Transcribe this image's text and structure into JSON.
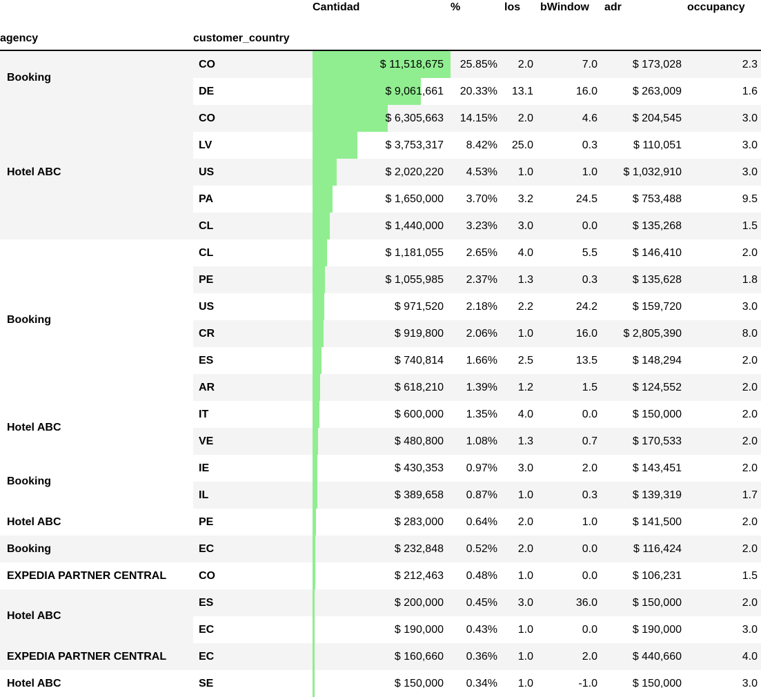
{
  "colors": {
    "bar": "#90ee90",
    "row_stripe": "#f4f4f4",
    "header_border": "#000000",
    "text": "#000000"
  },
  "chart_data": {
    "type": "table",
    "title": "",
    "bar_column": "Cantidad",
    "bar_scale_max": 11518675,
    "columns": [
      "agency",
      "customer_country",
      "Cantidad",
      "%",
      "los",
      "bWindow",
      "adr",
      "occupancy"
    ],
    "column_formats": [
      "text",
      "text",
      "money",
      "percent",
      "decimal1",
      "decimal1",
      "money",
      "decimal1"
    ],
    "rows": [
      [
        "Booking",
        "CO",
        11518675,
        25.85,
        2.0,
        7.0,
        173028,
        2.3
      ],
      [
        "Booking",
        "DE",
        9061661,
        20.33,
        13.1,
        16.0,
        263009,
        1.6
      ],
      [
        "Hotel ABC",
        "CO",
        6305663,
        14.15,
        2.0,
        4.6,
        204545,
        3.0
      ],
      [
        "Hotel ABC",
        "LV",
        3753317,
        8.42,
        25.0,
        0.3,
        110051,
        3.0
      ],
      [
        "Hotel ABC",
        "US",
        2020220,
        4.53,
        1.0,
        1.0,
        1032910,
        3.0
      ],
      [
        "Hotel ABC",
        "PA",
        1650000,
        3.7,
        3.2,
        24.5,
        753488,
        9.5
      ],
      [
        "Hotel ABC",
        "CL",
        1440000,
        3.23,
        3.0,
        0.0,
        135268,
        1.5
      ],
      [
        "Booking",
        "CL",
        1181055,
        2.65,
        4.0,
        5.5,
        146410,
        2.0
      ],
      [
        "Booking",
        "PE",
        1055985,
        2.37,
        1.3,
        0.3,
        135628,
        1.8
      ],
      [
        "Booking",
        "US",
        971520,
        2.18,
        2.2,
        24.2,
        159720,
        3.0
      ],
      [
        "Booking",
        "CR",
        919800,
        2.06,
        1.0,
        16.0,
        2805390,
        8.0
      ],
      [
        "Booking",
        "ES",
        740814,
        1.66,
        2.5,
        13.5,
        148294,
        2.0
      ],
      [
        "Booking",
        "AR",
        618210,
        1.39,
        1.2,
        1.5,
        124552,
        2.0
      ],
      [
        "Hotel ABC",
        "IT",
        600000,
        1.35,
        4.0,
        0.0,
        150000,
        2.0
      ],
      [
        "Hotel ABC",
        "VE",
        480800,
        1.08,
        1.3,
        0.7,
        170533,
        2.0
      ],
      [
        "Booking",
        "IE",
        430353,
        0.97,
        3.0,
        2.0,
        143451,
        2.0
      ],
      [
        "Booking",
        "IL",
        389658,
        0.87,
        1.0,
        0.3,
        139319,
        1.7
      ],
      [
        "Hotel ABC",
        "PE",
        283000,
        0.64,
        2.0,
        1.0,
        141500,
        2.0
      ],
      [
        "Booking",
        "EC",
        232848,
        0.52,
        2.0,
        0.0,
        116424,
        2.0
      ],
      [
        "EXPEDIA PARTNER CENTRAL",
        "CO",
        212463,
        0.48,
        1.0,
        0.0,
        106231,
        1.5
      ],
      [
        "Hotel ABC",
        "ES",
        200000,
        0.45,
        3.0,
        36.0,
        150000,
        2.0
      ],
      [
        "Hotel ABC",
        "EC",
        190000,
        0.43,
        1.0,
        0.0,
        190000,
        3.0
      ],
      [
        "EXPEDIA PARTNER CENTRAL",
        "EC",
        160660,
        0.36,
        1.0,
        2.0,
        440660,
        4.0
      ],
      [
        "Hotel ABC",
        "SE",
        150000,
        0.34,
        1.0,
        -1.0,
        150000,
        3.0
      ]
    ]
  }
}
